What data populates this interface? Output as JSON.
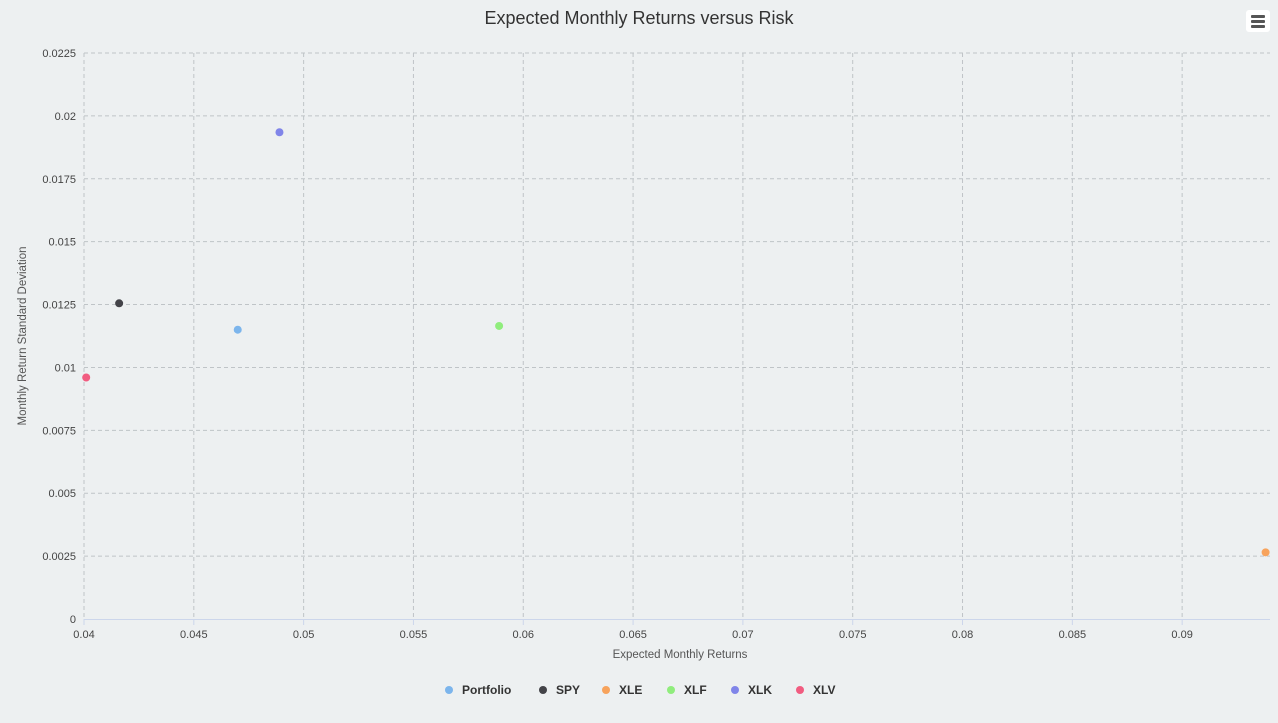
{
  "chart_data": {
    "type": "scatter",
    "title": "Expected Monthly Returns versus Risk",
    "xlabel": "Expected Monthly Returns",
    "ylabel": "Monthly Return Standard Deviation",
    "xlim": [
      0.04,
      0.094
    ],
    "ylim": [
      0,
      0.0225
    ],
    "x_ticks": [
      "0.04",
      "0.045",
      "0.05",
      "0.055",
      "0.06",
      "0.065",
      "0.07",
      "0.075",
      "0.08",
      "0.085",
      "0.09"
    ],
    "y_ticks": [
      "0",
      "0.0025",
      "0.005",
      "0.0075",
      "0.01",
      "0.0125",
      "0.015",
      "0.0175",
      "0.02",
      "0.0225"
    ],
    "grid": true,
    "legend_position": "bottom-center",
    "series": [
      {
        "name": "Portfolio",
        "color": "#7cb5ec",
        "points": [
          [
            0.047,
            0.0115
          ]
        ]
      },
      {
        "name": "SPY",
        "color": "#434348",
        "points": [
          [
            0.0416,
            0.01255
          ]
        ]
      },
      {
        "name": "XLE",
        "color": "#f7a35c",
        "points": [
          [
            0.0938,
            0.00265
          ]
        ]
      },
      {
        "name": "XLF",
        "color": "#90ed7d",
        "points": [
          [
            0.0589,
            0.01165
          ]
        ]
      },
      {
        "name": "XLK",
        "color": "#8085e9",
        "points": [
          [
            0.0489,
            0.01935
          ]
        ]
      },
      {
        "name": "XLV",
        "color": "#f15c80",
        "points": [
          [
            0.0401,
            0.0096
          ]
        ]
      }
    ]
  },
  "menu": {
    "icon": "hamburger-menu-icon"
  }
}
